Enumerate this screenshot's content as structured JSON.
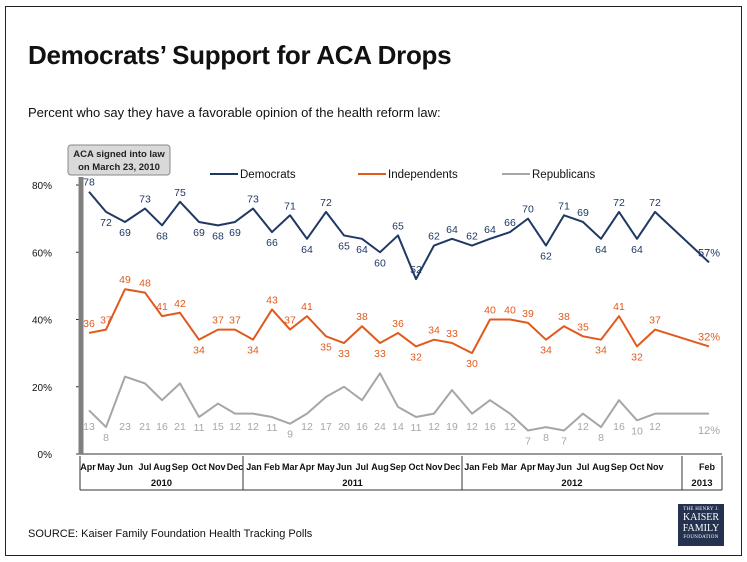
{
  "title": "Democrats’ Support for ACA Drops",
  "subtitle": "Percent who say they have a favorable opinion of the health reform law:",
  "source": "SOURCE: Kaiser Family Foundation Health Tracking Polls",
  "annotation": [
    "ACA signed into law",
    "on March 23, 2010"
  ],
  "logo": {
    "line1": "THE HENRY J.",
    "line2": "KAISER",
    "line3": "FAMILY",
    "line4": "FOUNDATION"
  },
  "colors": {
    "democrats": "#1f3864",
    "independents": "#e05a1e",
    "republicans": "#a6a6a6",
    "annotation_bg": "#d9d9d9",
    "annotation_line": "#7f7f7f"
  },
  "chart_data": {
    "type": "line",
    "title": "Democrats’ Support for ACA Drops",
    "ylabel": "",
    "ylim": [
      0,
      80
    ],
    "yticks": [
      "0%",
      "20%",
      "40%",
      "60%",
      "80%"
    ],
    "x_labels": [
      "Apr",
      "May",
      "Jun",
      "Jul",
      "Aug",
      "Sep",
      "Oct",
      "Nov",
      "Dec",
      "Jan",
      "Feb",
      "Mar",
      "Apr",
      "May",
      "Jun",
      "Jul",
      "Aug",
      "Sep",
      "Oct",
      "Nov",
      "Dec",
      "Jan",
      "Feb",
      "Mar",
      "Apr",
      "May",
      "Jun",
      "Jul",
      "Aug",
      "Sep",
      "Oct",
      "Nov",
      "Feb"
    ],
    "year_groups": [
      {
        "label": "2010",
        "from": 0,
        "to": 8
      },
      {
        "label": "2011",
        "from": 9,
        "to": 20
      },
      {
        "label": "2012",
        "from": 21,
        "to": 31
      },
      {
        "label": "2013",
        "from": 32,
        "to": 32
      }
    ],
    "x": [
      1.3,
      2.35,
      3.4,
      4.45,
      5.5,
      6.55,
      7.6,
      8.65,
      9.7,
      10.75,
      11.8,
      12.85,
      13.9,
      14.95,
      16,
      17.05,
      18.1,
      19.15,
      20.2,
      21.25,
      22.3,
      23.35,
      24.4,
      25.45,
      26.5,
      27.55,
      28.6,
      29.65,
      30.7,
      31.75,
      32.8,
      33.85,
      35.95
    ],
    "point_x": [
      1,
      1.5,
      2.2,
      2.7,
      3.3,
      3.8,
      4.5,
      5,
      5.5,
      6,
      6.5,
      6.9,
      7.3,
      7.9,
      8.5,
      9,
      9.6,
      10,
      10.4,
      10.9,
      11.4,
      11.9,
      12.3,
      12.6,
      13.3,
      13.8,
      14.3,
      14.8,
      15.3,
      15.8,
      16.4,
      16.9,
      17.3,
      17.8,
      18.3,
      18.8,
      19.3,
      19.7,
      20.2,
      20.6,
      21.2,
      21.7,
      22.3,
      22.8,
      23.3,
      23.8,
      24.3,
      24.8,
      25.3,
      25.8,
      26.2,
      26.7,
      27.3,
      27.8,
      28.3,
      28.8,
      29.3,
      29.8,
      30.3,
      30.8,
      31.3,
      31.8,
      32.2,
      32.7,
      33.3,
      33.8,
      34.3,
      35.9
    ],
    "series": [
      {
        "name": "Democrats",
        "values": [
          78,
          72,
          69,
          73,
          68,
          75,
          69,
          68,
          69,
          73,
          66,
          71,
          64,
          72,
          65,
          64,
          60,
          65,
          52,
          62,
          64,
          62,
          64,
          66,
          70,
          62,
          71,
          69,
          64,
          72,
          64,
          72,
          57
        ],
        "labels": [
          "78",
          "72",
          "69",
          "73",
          "68",
          "75",
          "69",
          "68",
          "69",
          "73",
          "66",
          "71",
          "64",
          "72",
          "65",
          "64",
          "60",
          "65",
          "52",
          "62",
          "64",
          "62",
          "64",
          "66",
          "70",
          "62",
          "71",
          "69",
          "64",
          "72",
          "64",
          "72",
          "57%"
        ]
      },
      {
        "name": "Independents",
        "values": [
          36,
          37,
          49,
          48,
          41,
          42,
          34,
          37,
          37,
          34,
          43,
          37,
          41,
          35,
          33,
          38,
          33,
          36,
          32,
          34,
          33,
          30,
          40,
          40,
          39,
          34,
          38,
          35,
          34,
          41,
          32,
          37,
          32
        ],
        "labels": [
          "36",
          "37",
          "49",
          "48",
          "41",
          "42",
          "34",
          "37",
          "37",
          "34",
          "43",
          "37",
          "41",
          "35",
          "33",
          "38",
          "33",
          "36",
          "32",
          "34",
          "33",
          "30",
          "40",
          "40",
          "39",
          "34",
          "38",
          "35",
          "34",
          "41",
          "32",
          "37",
          "32%"
        ]
      },
      {
        "name": "Republicans",
        "values": [
          13,
          8,
          23,
          21,
          16,
          21,
          11,
          15,
          12,
          12,
          11,
          9,
          12,
          17,
          20,
          16,
          24,
          14,
          11,
          12,
          19,
          12,
          16,
          12,
          7,
          8,
          7,
          12,
          8,
          16,
          10,
          12,
          12
        ],
        "labels": [
          "13",
          "8",
          "23",
          "21",
          "16",
          "21",
          "11",
          "15",
          "12",
          "12",
          "11",
          "9",
          "12",
          "17",
          "20",
          "16",
          "24",
          "14",
          "11",
          "12",
          "19",
          "12",
          "16",
          "12",
          "7",
          "8",
          "7",
          "12",
          "8",
          "16",
          "10",
          "12",
          "12%"
        ]
      }
    ],
    "legend": [
      "Democrats",
      "Independents",
      "Republicans"
    ],
    "legend_position": "top"
  }
}
